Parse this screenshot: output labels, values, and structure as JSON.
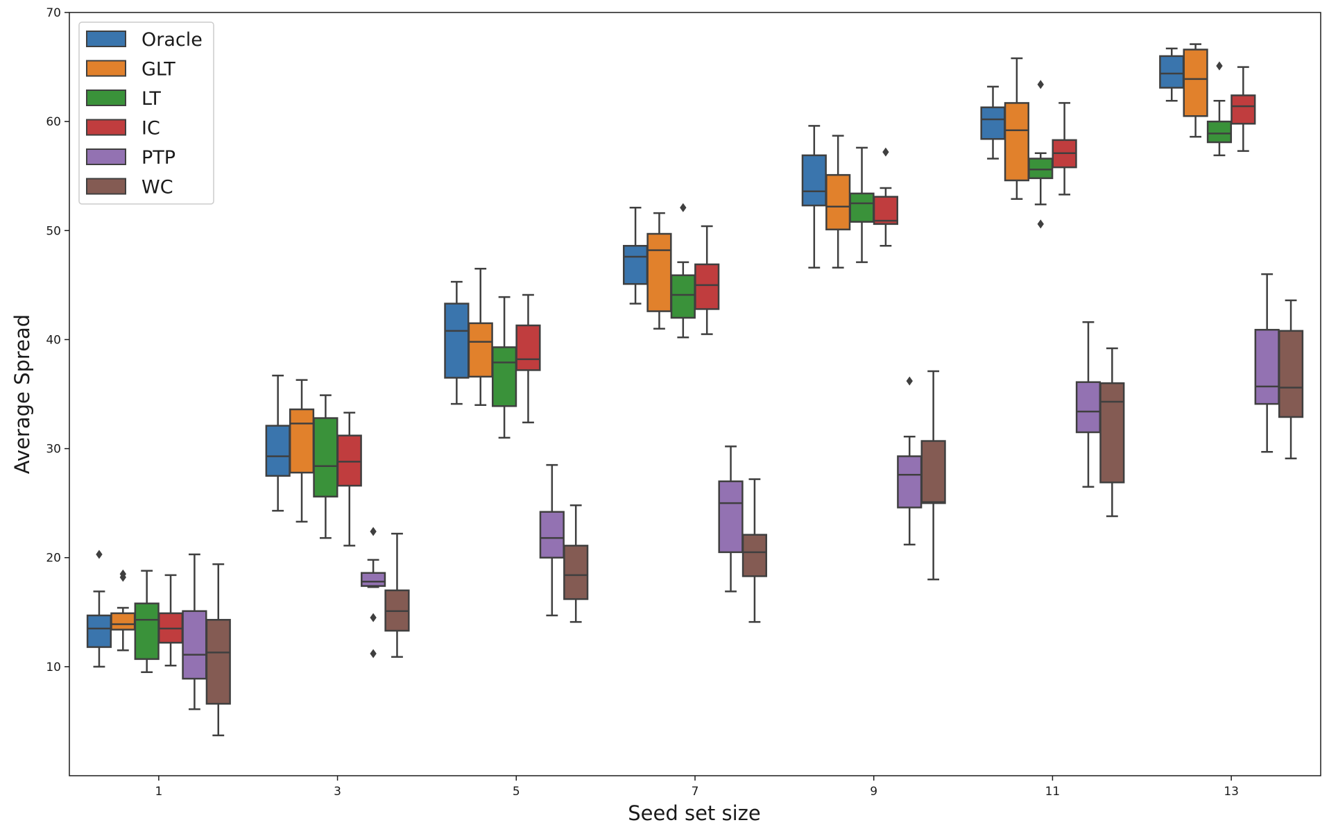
{
  "chart_data": {
    "type": "box",
    "title": "",
    "xlabel": "Seed set size",
    "ylabel": "Average Spread",
    "ylim": [
      0,
      70
    ],
    "yticks": [
      10,
      20,
      30,
      40,
      50,
      60,
      70
    ],
    "categories": [
      "1",
      "3",
      "5",
      "7",
      "9",
      "11",
      "13"
    ],
    "grid": false,
    "legend_position": "top-left",
    "series": [
      {
        "name": "Oracle",
        "color": "#3a75ad",
        "stats": [
          {
            "cat": "1",
            "min": 10.0,
            "q1": 11.8,
            "median": 13.5,
            "q3": 14.7,
            "max": 16.9,
            "outliers": [
              20.3
            ]
          },
          {
            "cat": "3",
            "min": 24.3,
            "q1": 27.5,
            "median": 29.3,
            "q3": 32.1,
            "max": 36.7,
            "outliers": []
          },
          {
            "cat": "5",
            "min": 34.1,
            "q1": 36.5,
            "median": 40.8,
            "q3": 43.3,
            "max": 45.3,
            "outliers": []
          },
          {
            "cat": "7",
            "min": 43.3,
            "q1": 45.1,
            "median": 47.6,
            "q3": 48.6,
            "max": 52.1,
            "outliers": []
          },
          {
            "cat": "9",
            "min": 46.6,
            "q1": 52.3,
            "median": 53.6,
            "q3": 56.9,
            "max": 59.6,
            "outliers": []
          },
          {
            "cat": "11",
            "min": 56.6,
            "q1": 58.4,
            "median": 60.2,
            "q3": 61.3,
            "max": 63.2,
            "outliers": []
          },
          {
            "cat": "13",
            "min": 61.9,
            "q1": 63.1,
            "median": 64.4,
            "q3": 66.0,
            "max": 66.7,
            "outliers": []
          }
        ]
      },
      {
        "name": "GLT",
        "color": "#e1812c",
        "stats": [
          {
            "cat": "1",
            "min": 11.5,
            "q1": 13.4,
            "median": 13.9,
            "q3": 14.9,
            "max": 15.4,
            "outliers": [
              18.2,
              18.5
            ]
          },
          {
            "cat": "3",
            "min": 23.3,
            "q1": 27.8,
            "median": 32.3,
            "q3": 33.6,
            "max": 36.3,
            "outliers": []
          },
          {
            "cat": "5",
            "min": 34.0,
            "q1": 36.6,
            "median": 39.8,
            "q3": 41.5,
            "max": 46.5,
            "outliers": []
          },
          {
            "cat": "7",
            "min": 41.0,
            "q1": 42.6,
            "median": 48.2,
            "q3": 49.7,
            "max": 51.6,
            "outliers": []
          },
          {
            "cat": "9",
            "min": 46.6,
            "q1": 50.1,
            "median": 52.2,
            "q3": 55.1,
            "max": 58.7,
            "outliers": []
          },
          {
            "cat": "11",
            "min": 52.9,
            "q1": 54.6,
            "median": 59.2,
            "q3": 61.7,
            "max": 65.8,
            "outliers": []
          },
          {
            "cat": "13",
            "min": 58.6,
            "q1": 60.5,
            "median": 63.9,
            "q3": 66.6,
            "max": 67.1,
            "outliers": []
          }
        ]
      },
      {
        "name": "LT",
        "color": "#3a923a",
        "stats": [
          {
            "cat": "1",
            "min": 9.5,
            "q1": 10.7,
            "median": 14.3,
            "q3": 15.8,
            "max": 18.8,
            "outliers": []
          },
          {
            "cat": "3",
            "min": 21.8,
            "q1": 25.6,
            "median": 28.4,
            "q3": 32.8,
            "max": 34.9,
            "outliers": []
          },
          {
            "cat": "5",
            "min": 31.0,
            "q1": 33.9,
            "median": 37.9,
            "q3": 39.3,
            "max": 43.9,
            "outliers": []
          },
          {
            "cat": "7",
            "min": 40.2,
            "q1": 42.0,
            "median": 44.1,
            "q3": 45.9,
            "max": 47.1,
            "outliers": [
              52.1
            ]
          },
          {
            "cat": "9",
            "min": 47.1,
            "q1": 50.8,
            "median": 52.5,
            "q3": 53.4,
            "max": 57.6,
            "outliers": []
          },
          {
            "cat": "11",
            "min": 52.4,
            "q1": 54.8,
            "median": 55.6,
            "q3": 56.6,
            "max": 57.1,
            "outliers": [
              50.6,
              63.4
            ]
          },
          {
            "cat": "13",
            "min": 56.9,
            "q1": 58.1,
            "median": 58.9,
            "q3": 60.0,
            "max": 61.9,
            "outliers": [
              65.1
            ]
          }
        ]
      },
      {
        "name": "IC",
        "color": "#c03d3e",
        "stats": [
          {
            "cat": "1",
            "min": 10.1,
            "q1": 12.2,
            "median": 13.5,
            "q3": 14.9,
            "max": 18.4,
            "outliers": []
          },
          {
            "cat": "3",
            "min": 21.1,
            "q1": 26.6,
            "median": 28.8,
            "q3": 31.2,
            "max": 33.3,
            "outliers": []
          },
          {
            "cat": "5",
            "min": 32.4,
            "q1": 37.2,
            "median": 38.2,
            "q3": 41.3,
            "max": 44.1,
            "outliers": []
          },
          {
            "cat": "7",
            "min": 40.5,
            "q1": 42.8,
            "median": 45.0,
            "q3": 46.9,
            "max": 50.4,
            "outliers": []
          },
          {
            "cat": "9",
            "min": 48.6,
            "q1": 50.6,
            "median": 50.9,
            "q3": 53.1,
            "max": 53.9,
            "outliers": [
              57.2
            ]
          },
          {
            "cat": "11",
            "min": 53.3,
            "q1": 55.8,
            "median": 57.1,
            "q3": 58.3,
            "max": 61.7,
            "outliers": []
          },
          {
            "cat": "13",
            "min": 57.3,
            "q1": 59.8,
            "median": 61.4,
            "q3": 62.4,
            "max": 65.0,
            "outliers": []
          }
        ]
      },
      {
        "name": "PTP",
        "color": "#9372b2",
        "stats": [
          {
            "cat": "1",
            "min": 6.1,
            "q1": 8.9,
            "median": 11.1,
            "q3": 15.1,
            "max": 20.3,
            "outliers": []
          },
          {
            "cat": "3",
            "min": 17.3,
            "q1": 17.4,
            "median": 17.8,
            "q3": 18.6,
            "max": 19.8,
            "outliers": [
              11.2,
              14.5,
              22.4
            ]
          },
          {
            "cat": "5",
            "min": 14.7,
            "q1": 20.0,
            "median": 21.8,
            "q3": 24.2,
            "max": 28.5,
            "outliers": []
          },
          {
            "cat": "7",
            "min": 16.9,
            "q1": 20.5,
            "median": 25.0,
            "q3": 27.0,
            "max": 30.2,
            "outliers": []
          },
          {
            "cat": "9",
            "min": 21.2,
            "q1": 24.6,
            "median": 27.6,
            "q3": 29.3,
            "max": 31.1,
            "outliers": [
              36.2
            ]
          },
          {
            "cat": "11",
            "min": 26.5,
            "q1": 31.5,
            "median": 33.4,
            "q3": 36.1,
            "max": 41.6,
            "outliers": []
          },
          {
            "cat": "13",
            "min": 29.7,
            "q1": 34.1,
            "median": 35.7,
            "q3": 40.9,
            "max": 46.0,
            "outliers": []
          }
        ]
      },
      {
        "name": "WC",
        "color": "#845b53",
        "stats": [
          {
            "cat": "1",
            "min": 3.7,
            "q1": 6.6,
            "median": 11.3,
            "q3": 14.3,
            "max": 19.4,
            "outliers": []
          },
          {
            "cat": "3",
            "min": 10.9,
            "q1": 13.3,
            "median": 15.1,
            "q3": 17.0,
            "max": 22.2,
            "outliers": []
          },
          {
            "cat": "5",
            "min": 14.1,
            "q1": 16.2,
            "median": 18.4,
            "q3": 21.1,
            "max": 24.8,
            "outliers": []
          },
          {
            "cat": "7",
            "min": 14.1,
            "q1": 18.3,
            "median": 20.5,
            "q3": 22.1,
            "max": 27.2,
            "outliers": []
          },
          {
            "cat": "9",
            "min": 18.0,
            "q1": 25.0,
            "median": 25.1,
            "q3": 30.7,
            "max": 37.1,
            "outliers": []
          },
          {
            "cat": "11",
            "min": 23.8,
            "q1": 26.9,
            "median": 34.3,
            "q3": 36.0,
            "max": 39.2,
            "outliers": []
          },
          {
            "cat": "13",
            "min": 29.1,
            "q1": 32.9,
            "median": 35.6,
            "q3": 40.8,
            "max": 43.6,
            "outliers": []
          }
        ]
      }
    ]
  }
}
